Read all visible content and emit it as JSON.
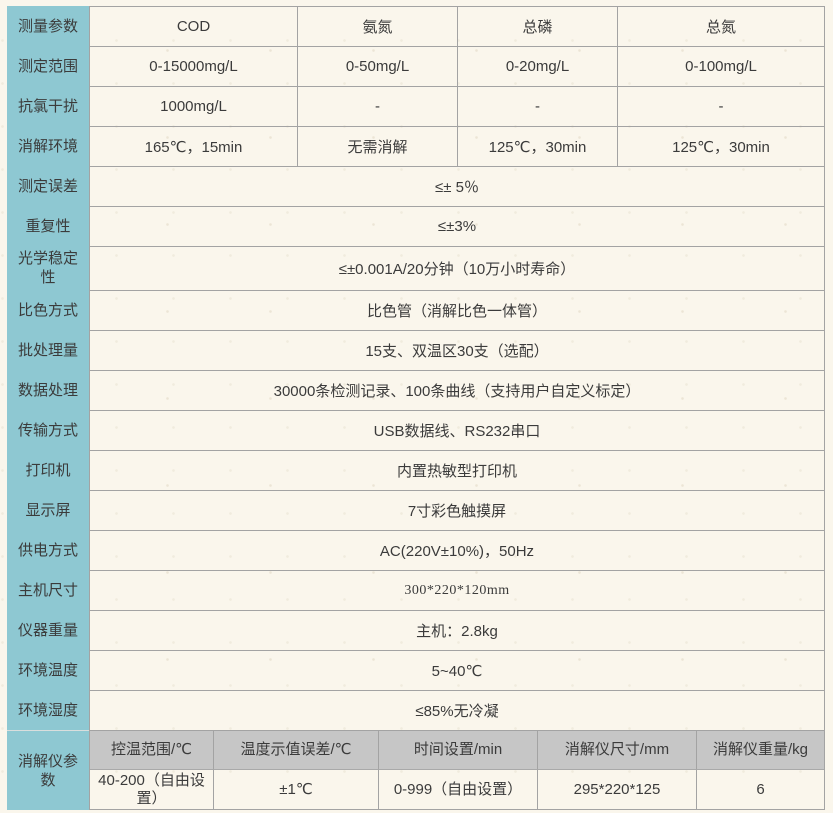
{
  "colors": {
    "label_column_bg": "#8ec8d2",
    "digester_header_bg": "#c6c6c6",
    "page_bg": "#faf6ec",
    "border": "#a3a3a3",
    "text": "#3b3b3b"
  },
  "table": {
    "param_rows": [
      {
        "label": "测量参数",
        "cells": [
          "COD",
          "氨氮",
          "总磷",
          "总氮"
        ]
      },
      {
        "label": "测定范围",
        "cells": [
          "0-15000mg/L",
          "0-50mg/L",
          "0-20mg/L",
          "0-100mg/L"
        ]
      },
      {
        "label": "抗氯干扰",
        "cells": [
          "1000mg/L",
          "-",
          "-",
          "-"
        ]
      },
      {
        "label": "消解环境",
        "cells": [
          "165℃，15min",
          "无需消解",
          "125℃，30min",
          "125℃，30min"
        ]
      }
    ],
    "span_rows": [
      {
        "label": "测定误差",
        "value": "≤± 5％"
      },
      {
        "label": "重复性",
        "value": "≤±3%"
      },
      {
        "label": "光学稳定性",
        "value": "≤±0.001A/20分钟（10万小时寿命）"
      },
      {
        "label": "比色方式",
        "value": "比色管（消解比色一体管）"
      },
      {
        "label": "批处理量",
        "value": "15支、双温区30支（选配）"
      },
      {
        "label": "数据处理",
        "value": "30000条检测记录、100条曲线（支持用户自定义标定）"
      },
      {
        "label": "传输方式",
        "value": "USB数据线、RS232串口"
      },
      {
        "label": "打印机",
        "value": "内置热敏型打印机"
      },
      {
        "label": "显示屏",
        "value": "7寸彩色触摸屏"
      },
      {
        "label": "供电方式",
        "value": "AC(220V±10%)，50Hz"
      },
      {
        "label": "主机尺寸",
        "value": "300*220*120mm"
      },
      {
        "label": "仪器重量",
        "value": "主机：2.8kg"
      },
      {
        "label": "环境温度",
        "value": "5~40℃"
      },
      {
        "label": "环境湿度",
        "value": "≤85%无冷凝"
      }
    ],
    "digester": {
      "label": "消解仪参数",
      "headers": [
        "控温范围/℃",
        "温度示值误差/℃",
        "时间设置/min",
        "消解仪尺寸/mm",
        "消解仪重量/kg"
      ],
      "values": [
        "40-200（自由设置）",
        "±1℃",
        "0-999（自由设置）",
        "295*220*125",
        "6"
      ]
    }
  }
}
